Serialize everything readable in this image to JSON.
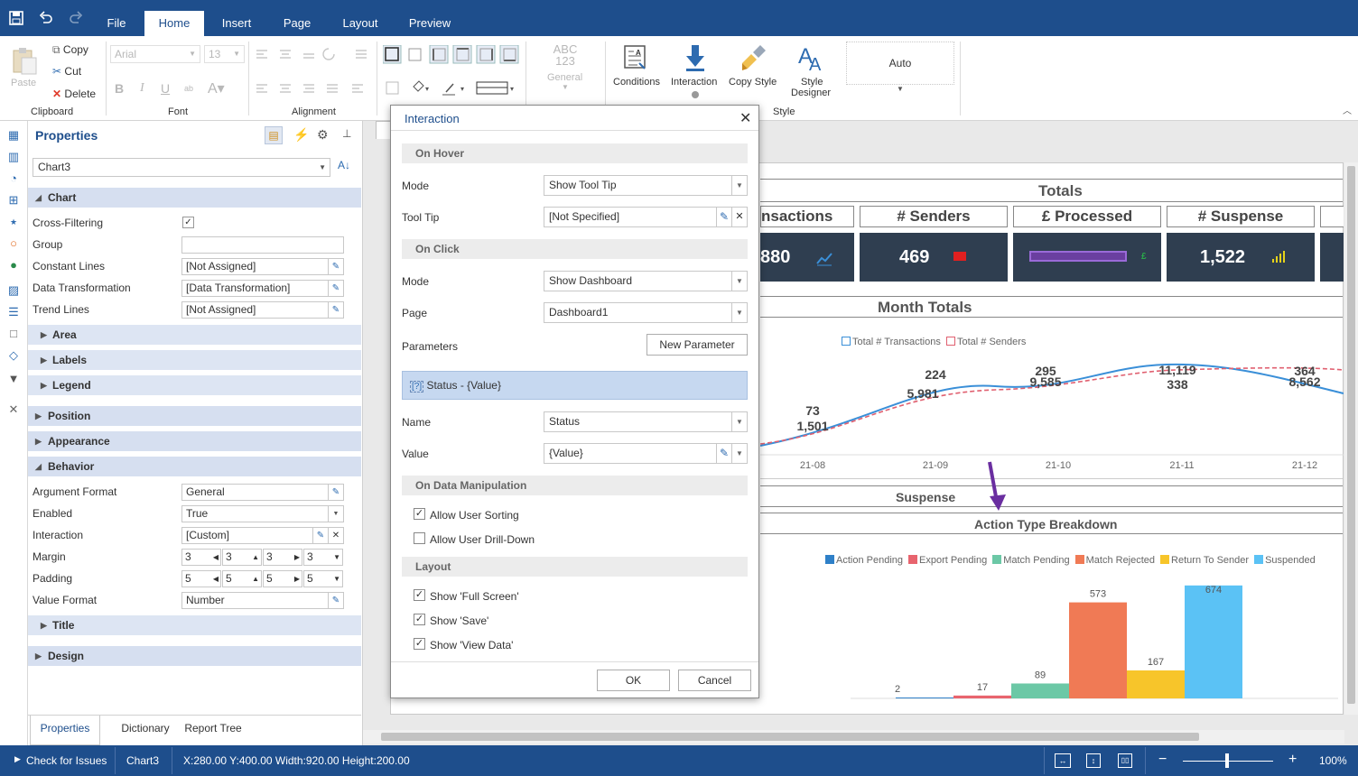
{
  "menu": {
    "file": "File",
    "home": "Home",
    "insert": "Insert",
    "page": "Page",
    "layout": "Layout",
    "preview": "Preview"
  },
  "ribbon": {
    "paste": "Paste",
    "copy": "Copy",
    "cut": "Cut",
    "delete": "Delete",
    "clipboard": "Clipboard",
    "font_name": "Arial",
    "font_size": "13",
    "font": "Font",
    "alignment": "Alignment",
    "format_icon_text": "ABC\n123",
    "format_general": "General",
    "conditions": "Conditions",
    "interaction": "Interaction",
    "copy_style": "Copy Style",
    "style_designer_1": "Style",
    "style_designer_2": "Designer",
    "style": "Style",
    "auto": "Auto"
  },
  "properties": {
    "title": "Properties",
    "component": "Chart3",
    "sections": {
      "chart": "Chart",
      "position": "Position",
      "appearance": "Appearance",
      "behavior": "Behavior",
      "design": "Design"
    },
    "subsections": {
      "area": "Area",
      "labels": "Labels",
      "legend": "Legend",
      "title": "Title"
    },
    "rows": {
      "cross_filtering": "Cross-Filtering",
      "group": "Group",
      "constant_lines": "Constant Lines",
      "constant_lines_val": "[Not Assigned]",
      "data_transformation": "Data Transformation",
      "data_transformation_val": "[Data Transformation]",
      "trend_lines": "Trend Lines",
      "trend_lines_val": "[Not Assigned]",
      "argument_format": "Argument Format",
      "argument_format_val": "General",
      "enabled": "Enabled",
      "enabled_val": "True",
      "interaction": "Interaction",
      "interaction_val": "[Custom]",
      "margin": "Margin",
      "padding": "Padding",
      "margin_vals": [
        "3",
        "3",
        "3",
        "3"
      ],
      "padding_vals": [
        "5",
        "5",
        "5",
        "5"
      ],
      "value_format": "Value Format",
      "value_format_val": "Number"
    },
    "tabs": {
      "properties": "Properties",
      "dictionary": "Dictionary",
      "report_tree": "Report Tree"
    }
  },
  "dialog": {
    "title": "Interaction",
    "on_hover": "On Hover",
    "mode_label": "Mode",
    "hover_mode": "Show Tool Tip",
    "tooltip_label": "Tool Tip",
    "tooltip_val": "[Not Specified]",
    "on_click": "On Click",
    "click_mode": "Show Dashboard",
    "page_label": "Page",
    "page_val": "Dashboard1",
    "parameters_label": "Parameters",
    "new_parameter": "New Parameter",
    "param_item": "Status - {Value}",
    "name_label": "Name",
    "name_val": "Status",
    "value_label": "Value",
    "value_val": "{Value}",
    "on_data_manipulation": "On Data Manipulation",
    "allow_sorting": "Allow User Sorting",
    "allow_drilldown": "Allow User Drill-Down",
    "layout": "Layout",
    "show_fullscreen": "Show 'Full Screen'",
    "show_save": "Show 'Save'",
    "show_viewdata": "Show 'View Data'",
    "ok": "OK",
    "cancel": "Cancel"
  },
  "dashboard": {
    "totals_title": "Totals",
    "kpis": [
      {
        "label": "nsactions",
        "value": "880",
        "icon": "line-chart-icon",
        "color": "#3a8fd8"
      },
      {
        "label": "# Senders",
        "value": "469",
        "icon": "envelope-icon",
        "color": "#e02020"
      },
      {
        "label": "£ Processed",
        "value": "",
        "icon": "pound-icon",
        "color": "#2aa84a"
      },
      {
        "label": "# Suspense",
        "value": "1,522",
        "icon": "bars-icon",
        "color": "#e6d21a"
      }
    ],
    "month_totals_title": "Month Totals",
    "suspense_title": "Suspense"
  },
  "chart_data": [
    {
      "type": "line",
      "title": "Month Totals",
      "categories": [
        "21-08",
        "21-09",
        "21-10",
        "21-11",
        "21-12"
      ],
      "series": [
        {
          "name": "Total # Transactions",
          "color": "#3a8fd8",
          "labels": [
            "1,501",
            "5,981",
            "9,585",
            "11,119",
            "8,562"
          ]
        },
        {
          "name": "Total # Senders",
          "color": "#e06070",
          "labels": [
            "73",
            "224",
            "295",
            "338",
            "364"
          ]
        }
      ]
    },
    {
      "type": "bar",
      "title": "Action Type Breakdown",
      "categories": [
        "Action Pending",
        "Export Pending",
        "Match Pending",
        "Match Rejected",
        "Return To Sender",
        "Suspended"
      ],
      "values": [
        2,
        17,
        89,
        573,
        167,
        674
      ],
      "colors": [
        "#2f80c8",
        "#e8646e",
        "#6cc8a6",
        "#f07a55",
        "#f7c52a",
        "#5bc2f5"
      ],
      "ylim": [
        0,
        700
      ]
    }
  ],
  "status": {
    "check": "Check for Issues",
    "component": "Chart3",
    "coords": "X:280.00 Y:400.00 Width:920.00 Height:200.00",
    "zoom": "100%"
  }
}
